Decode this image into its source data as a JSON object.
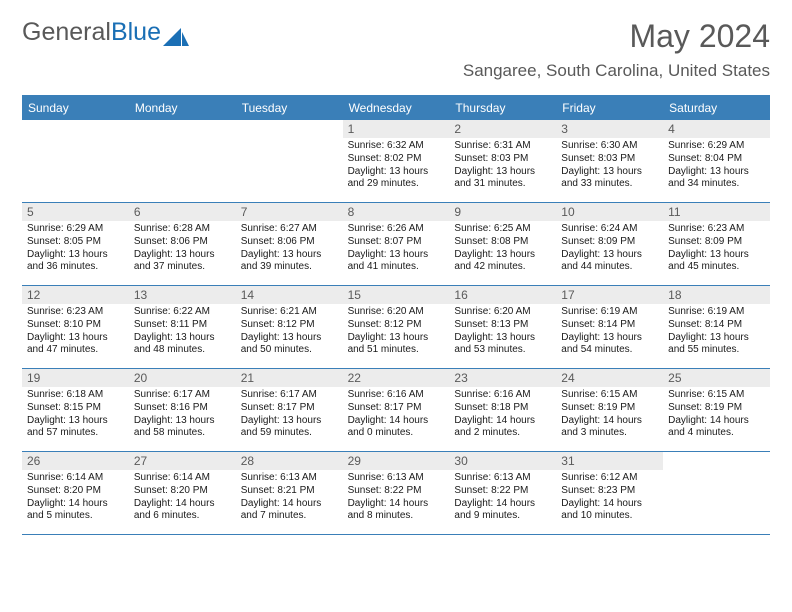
{
  "logo": {
    "text1": "General",
    "text2": "Blue"
  },
  "title": "May 2024",
  "location": "Sangaree, South Carolina, United States",
  "dayNames": [
    "Sunday",
    "Monday",
    "Tuesday",
    "Wednesday",
    "Thursday",
    "Friday",
    "Saturday"
  ],
  "colors": {
    "header_bg": "#3a7fb8",
    "daynum_bg": "#ececec",
    "text_gray": "#595959"
  },
  "weeks": [
    [
      {
        "n": "",
        "lines": []
      },
      {
        "n": "",
        "lines": []
      },
      {
        "n": "",
        "lines": []
      },
      {
        "n": "1",
        "lines": [
          "Sunrise: 6:32 AM",
          "Sunset: 8:02 PM",
          "Daylight: 13 hours",
          "and 29 minutes."
        ]
      },
      {
        "n": "2",
        "lines": [
          "Sunrise: 6:31 AM",
          "Sunset: 8:03 PM",
          "Daylight: 13 hours",
          "and 31 minutes."
        ]
      },
      {
        "n": "3",
        "lines": [
          "Sunrise: 6:30 AM",
          "Sunset: 8:03 PM",
          "Daylight: 13 hours",
          "and 33 minutes."
        ]
      },
      {
        "n": "4",
        "lines": [
          "Sunrise: 6:29 AM",
          "Sunset: 8:04 PM",
          "Daylight: 13 hours",
          "and 34 minutes."
        ]
      }
    ],
    [
      {
        "n": "5",
        "lines": [
          "Sunrise: 6:29 AM",
          "Sunset: 8:05 PM",
          "Daylight: 13 hours",
          "and 36 minutes."
        ]
      },
      {
        "n": "6",
        "lines": [
          "Sunrise: 6:28 AM",
          "Sunset: 8:06 PM",
          "Daylight: 13 hours",
          "and 37 minutes."
        ]
      },
      {
        "n": "7",
        "lines": [
          "Sunrise: 6:27 AM",
          "Sunset: 8:06 PM",
          "Daylight: 13 hours",
          "and 39 minutes."
        ]
      },
      {
        "n": "8",
        "lines": [
          "Sunrise: 6:26 AM",
          "Sunset: 8:07 PM",
          "Daylight: 13 hours",
          "and 41 minutes."
        ]
      },
      {
        "n": "9",
        "lines": [
          "Sunrise: 6:25 AM",
          "Sunset: 8:08 PM",
          "Daylight: 13 hours",
          "and 42 minutes."
        ]
      },
      {
        "n": "10",
        "lines": [
          "Sunrise: 6:24 AM",
          "Sunset: 8:09 PM",
          "Daylight: 13 hours",
          "and 44 minutes."
        ]
      },
      {
        "n": "11",
        "lines": [
          "Sunrise: 6:23 AM",
          "Sunset: 8:09 PM",
          "Daylight: 13 hours",
          "and 45 minutes."
        ]
      }
    ],
    [
      {
        "n": "12",
        "lines": [
          "Sunrise: 6:23 AM",
          "Sunset: 8:10 PM",
          "Daylight: 13 hours",
          "and 47 minutes."
        ]
      },
      {
        "n": "13",
        "lines": [
          "Sunrise: 6:22 AM",
          "Sunset: 8:11 PM",
          "Daylight: 13 hours",
          "and 48 minutes."
        ]
      },
      {
        "n": "14",
        "lines": [
          "Sunrise: 6:21 AM",
          "Sunset: 8:12 PM",
          "Daylight: 13 hours",
          "and 50 minutes."
        ]
      },
      {
        "n": "15",
        "lines": [
          "Sunrise: 6:20 AM",
          "Sunset: 8:12 PM",
          "Daylight: 13 hours",
          "and 51 minutes."
        ]
      },
      {
        "n": "16",
        "lines": [
          "Sunrise: 6:20 AM",
          "Sunset: 8:13 PM",
          "Daylight: 13 hours",
          "and 53 minutes."
        ]
      },
      {
        "n": "17",
        "lines": [
          "Sunrise: 6:19 AM",
          "Sunset: 8:14 PM",
          "Daylight: 13 hours",
          "and 54 minutes."
        ]
      },
      {
        "n": "18",
        "lines": [
          "Sunrise: 6:19 AM",
          "Sunset: 8:14 PM",
          "Daylight: 13 hours",
          "and 55 minutes."
        ]
      }
    ],
    [
      {
        "n": "19",
        "lines": [
          "Sunrise: 6:18 AM",
          "Sunset: 8:15 PM",
          "Daylight: 13 hours",
          "and 57 minutes."
        ]
      },
      {
        "n": "20",
        "lines": [
          "Sunrise: 6:17 AM",
          "Sunset: 8:16 PM",
          "Daylight: 13 hours",
          "and 58 minutes."
        ]
      },
      {
        "n": "21",
        "lines": [
          "Sunrise: 6:17 AM",
          "Sunset: 8:17 PM",
          "Daylight: 13 hours",
          "and 59 minutes."
        ]
      },
      {
        "n": "22",
        "lines": [
          "Sunrise: 6:16 AM",
          "Sunset: 8:17 PM",
          "Daylight: 14 hours",
          "and 0 minutes."
        ]
      },
      {
        "n": "23",
        "lines": [
          "Sunrise: 6:16 AM",
          "Sunset: 8:18 PM",
          "Daylight: 14 hours",
          "and 2 minutes."
        ]
      },
      {
        "n": "24",
        "lines": [
          "Sunrise: 6:15 AM",
          "Sunset: 8:19 PM",
          "Daylight: 14 hours",
          "and 3 minutes."
        ]
      },
      {
        "n": "25",
        "lines": [
          "Sunrise: 6:15 AM",
          "Sunset: 8:19 PM",
          "Daylight: 14 hours",
          "and 4 minutes."
        ]
      }
    ],
    [
      {
        "n": "26",
        "lines": [
          "Sunrise: 6:14 AM",
          "Sunset: 8:20 PM",
          "Daylight: 14 hours",
          "and 5 minutes."
        ]
      },
      {
        "n": "27",
        "lines": [
          "Sunrise: 6:14 AM",
          "Sunset: 8:20 PM",
          "Daylight: 14 hours",
          "and 6 minutes."
        ]
      },
      {
        "n": "28",
        "lines": [
          "Sunrise: 6:13 AM",
          "Sunset: 8:21 PM",
          "Daylight: 14 hours",
          "and 7 minutes."
        ]
      },
      {
        "n": "29",
        "lines": [
          "Sunrise: 6:13 AM",
          "Sunset: 8:22 PM",
          "Daylight: 14 hours",
          "and 8 minutes."
        ]
      },
      {
        "n": "30",
        "lines": [
          "Sunrise: 6:13 AM",
          "Sunset: 8:22 PM",
          "Daylight: 14 hours",
          "and 9 minutes."
        ]
      },
      {
        "n": "31",
        "lines": [
          "Sunrise: 6:12 AM",
          "Sunset: 8:23 PM",
          "Daylight: 14 hours",
          "and 10 minutes."
        ]
      },
      {
        "n": "",
        "lines": []
      }
    ]
  ]
}
